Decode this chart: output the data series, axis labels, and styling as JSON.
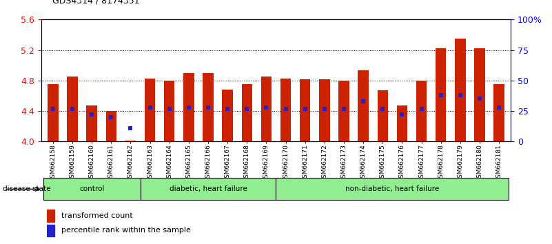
{
  "title": "GDS4314 / 8174351",
  "samples": [
    "GSM662158",
    "GSM662159",
    "GSM662160",
    "GSM662161",
    "GSM662162",
    "GSM662163",
    "GSM662164",
    "GSM662165",
    "GSM662166",
    "GSM662167",
    "GSM662168",
    "GSM662169",
    "GSM662170",
    "GSM662171",
    "GSM662172",
    "GSM662173",
    "GSM662174",
    "GSM662175",
    "GSM662176",
    "GSM662177",
    "GSM662178",
    "GSM662179",
    "GSM662180",
    "GSM662181"
  ],
  "transformed_count": [
    4.75,
    4.85,
    4.47,
    4.4,
    4.01,
    4.83,
    4.8,
    4.9,
    4.9,
    4.68,
    4.75,
    4.85,
    4.83,
    4.82,
    4.82,
    4.8,
    4.93,
    4.67,
    4.47,
    4.8,
    5.22,
    5.35,
    5.22,
    4.75
  ],
  "percentile_rank": [
    27,
    27,
    22,
    20,
    11,
    28,
    27,
    28,
    28,
    27,
    27,
    28,
    27,
    27,
    27,
    27,
    33,
    27,
    22,
    27,
    38,
    38,
    35,
    28
  ],
  "group_boundaries": [
    0,
    5,
    12,
    24
  ],
  "group_labels": [
    "control",
    "diabetic, heart failure",
    "non-diabetic, heart failure"
  ],
  "ylim_left": [
    4.0,
    5.6
  ],
  "ylim_right": [
    0,
    100
  ],
  "yticks_left": [
    4.0,
    4.4,
    4.8,
    5.2,
    5.6
  ],
  "yticks_right": [
    0,
    25,
    50,
    75,
    100
  ],
  "ytick_labels_right": [
    "0",
    "25",
    "50",
    "75",
    "100%"
  ],
  "bar_color": "#cc2200",
  "dot_color": "#2222cc",
  "bar_width": 0.55,
  "legend_label_tc": "transformed count",
  "legend_label_pr": "percentile rank within the sample",
  "disease_state_label": "disease state",
  "group_color": "#90ee90",
  "grid_color": "black"
}
